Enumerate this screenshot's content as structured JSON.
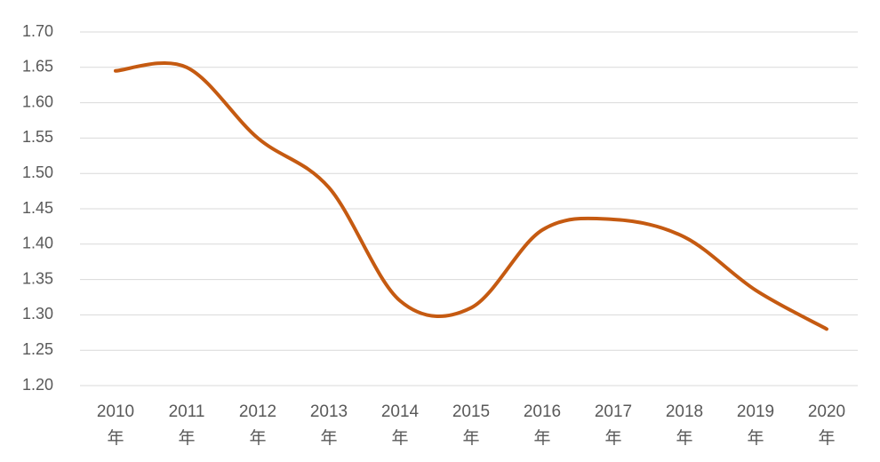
{
  "chart_data": {
    "type": "line",
    "categories": [
      "2010年",
      "2011年",
      "2012年",
      "2013年",
      "2014年",
      "2015年",
      "2016年",
      "2017年",
      "2018年",
      "2019年",
      "2020年"
    ],
    "values": [
      1.645,
      1.65,
      1.55,
      1.48,
      1.32,
      1.31,
      1.42,
      1.435,
      1.41,
      1.335,
      1.28
    ],
    "color": "#c55a11",
    "smooth": true,
    "ylim": [
      1.2,
      1.7
    ],
    "yticks": [
      {
        "value": 1.2,
        "label": "1.20"
      },
      1.25,
      {
        "value": 1.3,
        "label": "1.30"
      },
      1.35,
      {
        "value": 1.4,
        "label": "1.40"
      },
      1.45,
      {
        "value": 1.5,
        "label": "1.50"
      },
      1.55,
      {
        "value": 1.6,
        "label": "1.60"
      },
      1.65,
      {
        "value": 1.7,
        "label": "1.70"
      }
    ],
    "grid": true
  }
}
